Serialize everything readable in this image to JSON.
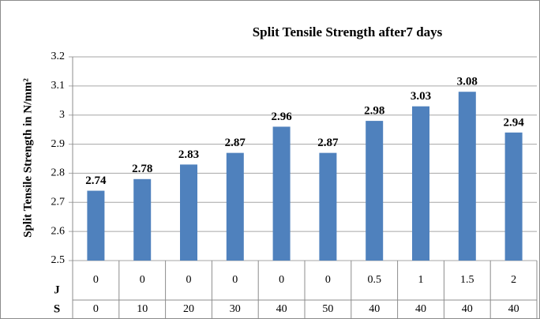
{
  "chart_data": {
    "type": "bar",
    "title": "Split Tensile Strength after7 days",
    "y_label": "Split Tensile Strength in N/mm²",
    "category_rows": [
      {
        "name": "J",
        "labels": [
          "0",
          "0",
          "0",
          "0",
          "0",
          "0",
          "0.5",
          "1",
          "1.5",
          "2"
        ]
      },
      {
        "name": "S",
        "labels": [
          "0",
          "10",
          "20",
          "30",
          "40",
          "50",
          "40",
          "40",
          "40",
          "40"
        ]
      }
    ],
    "values": [
      2.74,
      2.78,
      2.83,
      2.87,
      2.96,
      2.87,
      2.98,
      3.03,
      3.08,
      2.94
    ],
    "color": "#4f81bd",
    "ylim": [
      2.5,
      3.2
    ],
    "yticks": [
      2.5,
      2.6,
      2.7,
      2.8,
      2.9,
      3,
      3.1,
      3.2
    ],
    "grid": true
  }
}
